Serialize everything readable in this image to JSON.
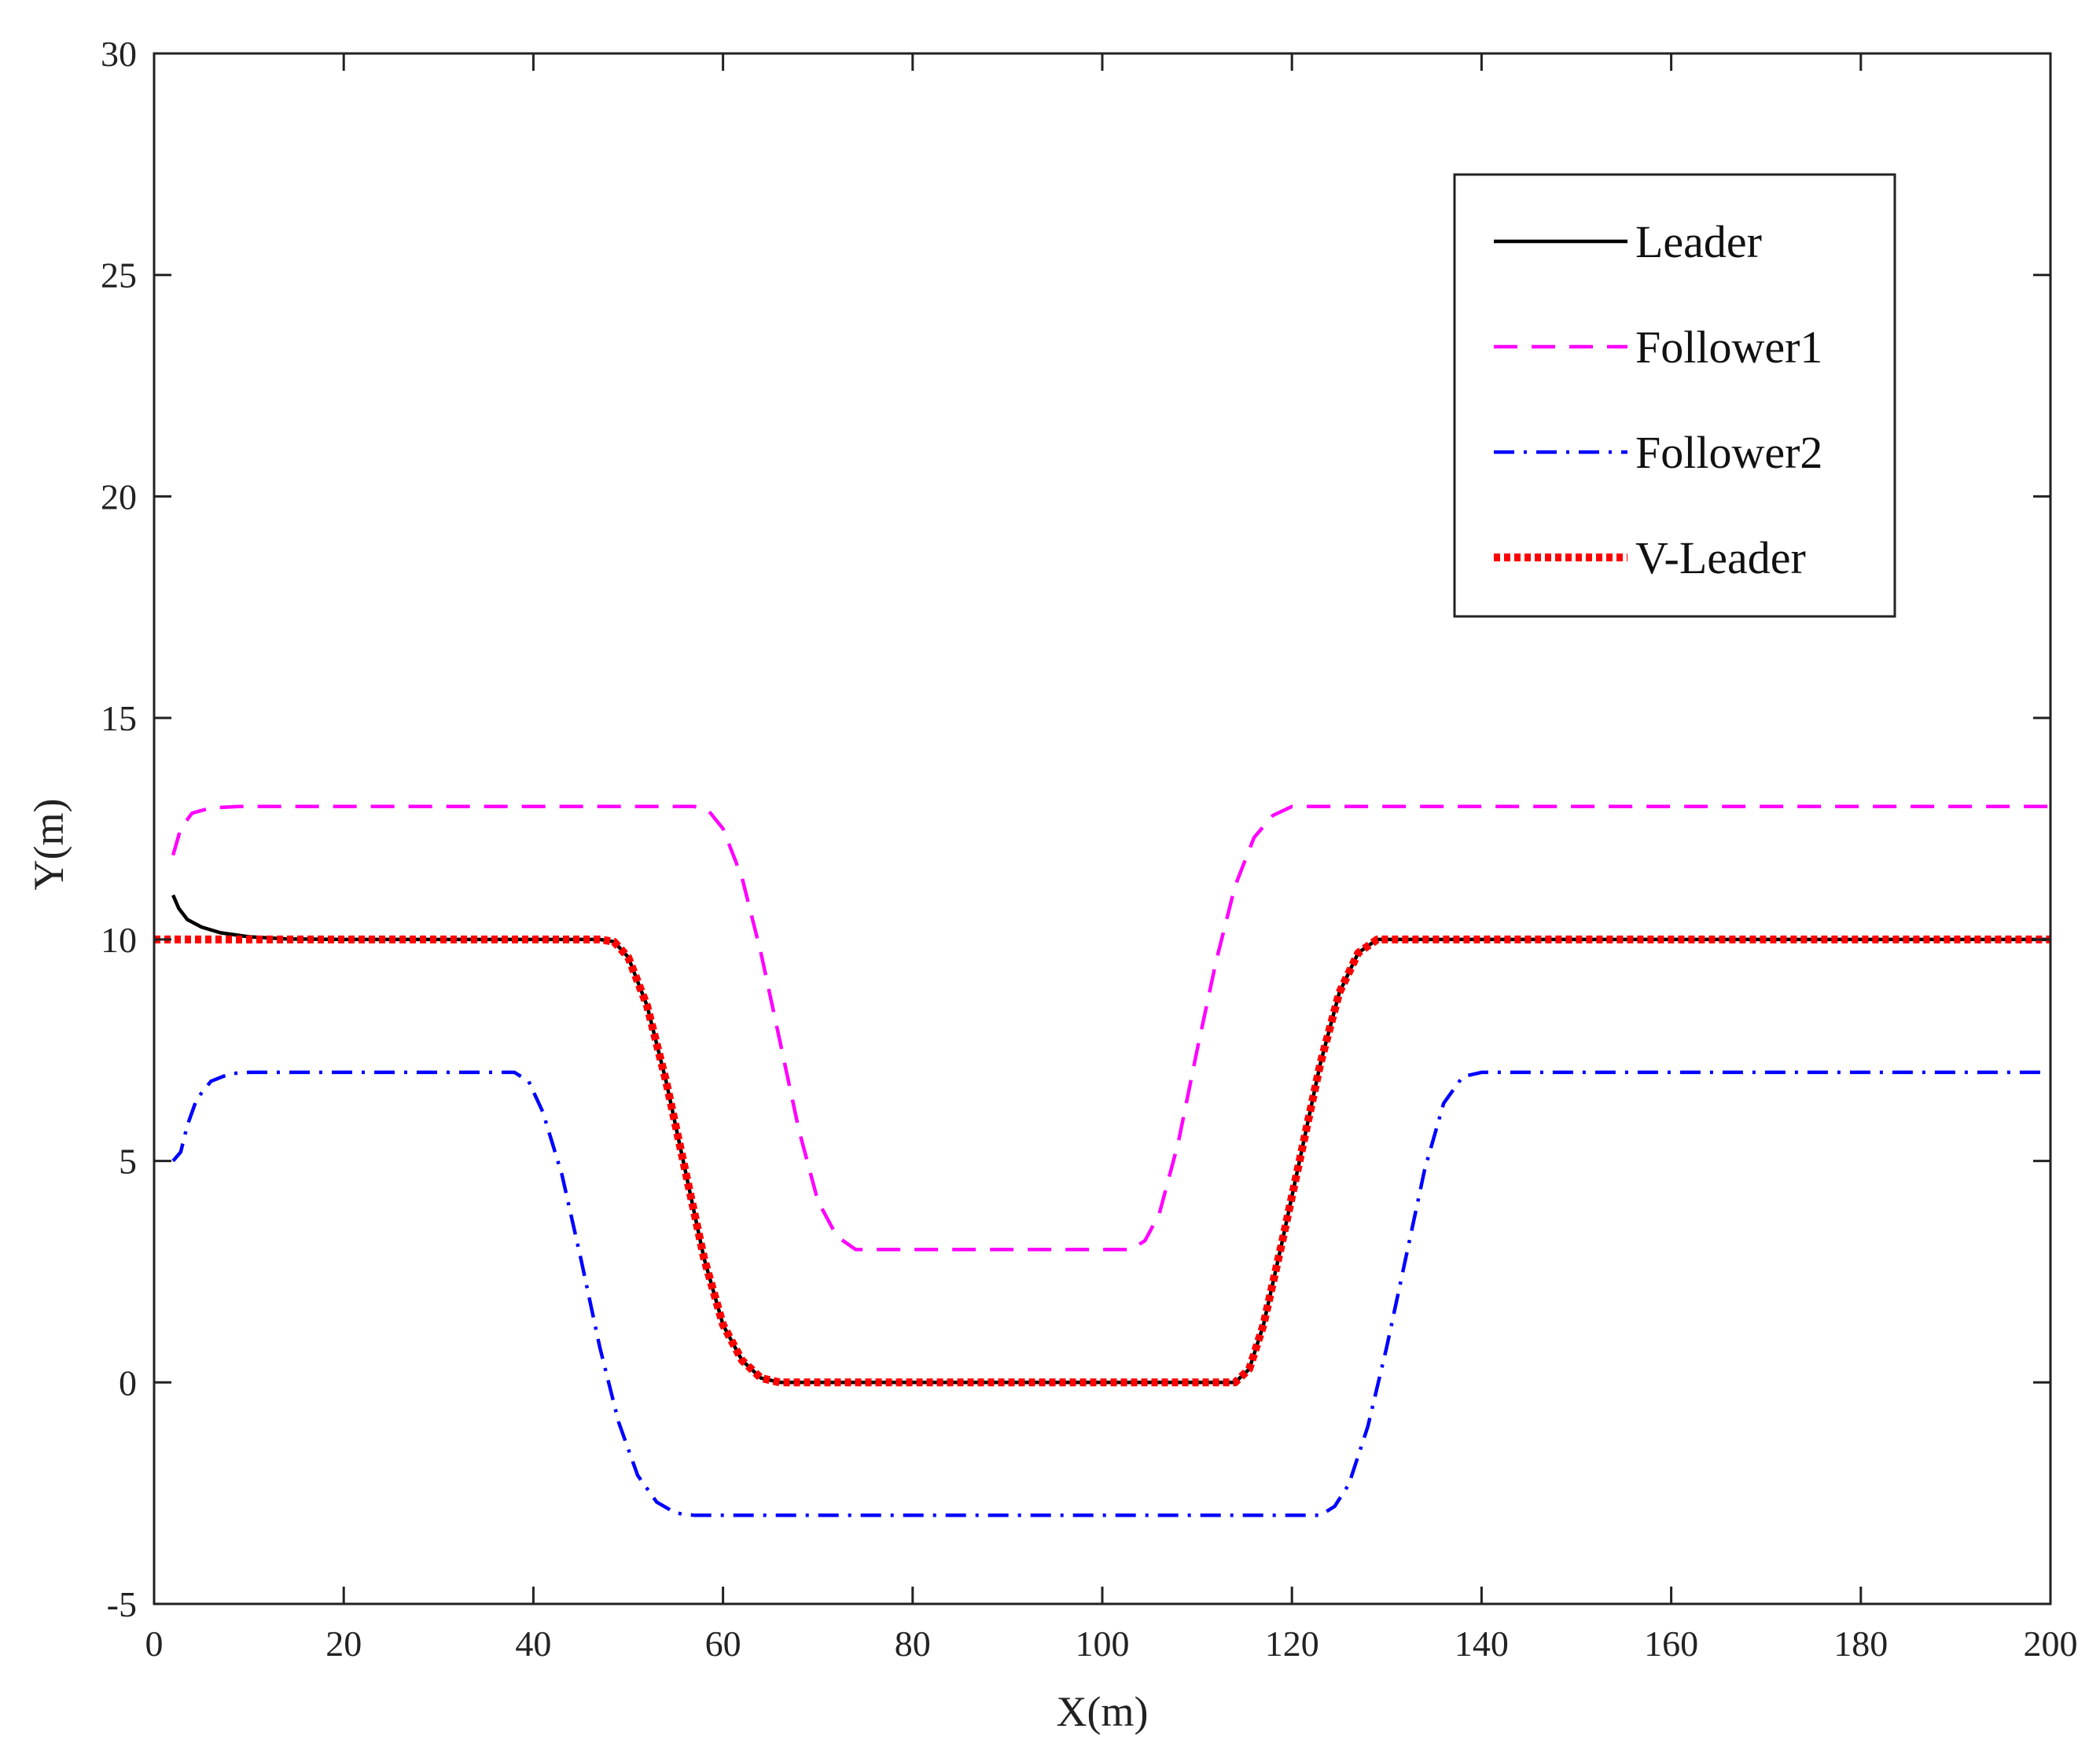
{
  "chart_data": {
    "type": "line",
    "xlabel": "X(m)",
    "ylabel": "Y(m)",
    "xlim": [
      0,
      200
    ],
    "ylim": [
      -5,
      30
    ],
    "xticks": [
      "0",
      "20",
      "40",
      "60",
      "80",
      "100",
      "120",
      "140",
      "160",
      "180",
      "200"
    ],
    "yticks": [
      "-5",
      "0",
      "5",
      "10",
      "15",
      "20",
      "25",
      "30"
    ],
    "grid": false,
    "legend_position": "top-right",
    "series": [
      {
        "name": "Leader",
        "color": "#000000",
        "style": "solid",
        "points": [
          [
            2,
            11
          ],
          [
            2.6,
            10.7
          ],
          [
            3.5,
            10.45
          ],
          [
            5,
            10.28
          ],
          [
            7,
            10.15
          ],
          [
            10,
            10.06
          ],
          [
            14,
            10.01
          ],
          [
            20,
            10
          ],
          [
            47,
            10
          ],
          [
            48.5,
            9.95
          ],
          [
            50,
            9.6
          ],
          [
            52,
            8.5
          ],
          [
            54,
            6.8
          ],
          [
            56,
            4.8
          ],
          [
            58,
            2.8
          ],
          [
            60,
            1.3
          ],
          [
            62,
            0.5
          ],
          [
            64,
            0.1
          ],
          [
            66,
            0
          ],
          [
            114,
            0
          ],
          [
            115.5,
            0.3
          ],
          [
            117,
            1.3
          ],
          [
            119,
            3.2
          ],
          [
            121,
            5.2
          ],
          [
            123,
            7.2
          ],
          [
            125,
            8.8
          ],
          [
            127,
            9.7
          ],
          [
            129,
            10
          ],
          [
            200,
            10
          ]
        ]
      },
      {
        "name": "Follower1",
        "color": "#ff00ff",
        "style": "dashed",
        "points": [
          [
            2,
            11.9
          ],
          [
            2.8,
            12.5
          ],
          [
            4,
            12.85
          ],
          [
            6,
            12.97
          ],
          [
            9,
            13
          ],
          [
            57,
            13
          ],
          [
            58.5,
            12.9
          ],
          [
            60,
            12.5
          ],
          [
            62,
            11.4
          ],
          [
            64,
            9.7
          ],
          [
            66,
            7.7
          ],
          [
            68,
            5.7
          ],
          [
            70,
            4.1
          ],
          [
            72,
            3.3
          ],
          [
            74,
            3
          ],
          [
            77,
            3
          ],
          [
            103,
            3
          ],
          [
            104.5,
            3.2
          ],
          [
            106,
            3.8
          ],
          [
            108,
            5.4
          ],
          [
            110,
            7.5
          ],
          [
            112,
            9.5
          ],
          [
            114,
            11.2
          ],
          [
            116,
            12.3
          ],
          [
            118,
            12.8
          ],
          [
            120,
            13
          ],
          [
            200,
            13
          ]
        ]
      },
      {
        "name": "Follower2",
        "color": "#0000ff",
        "style": "dashdot",
        "points": [
          [
            2,
            5
          ],
          [
            2.8,
            5.2
          ],
          [
            3.5,
            5.8
          ],
          [
            4.5,
            6.4
          ],
          [
            6,
            6.8
          ],
          [
            8,
            6.97
          ],
          [
            10,
            7
          ],
          [
            38,
            7
          ],
          [
            39.5,
            6.8
          ],
          [
            41,
            6.1
          ],
          [
            43,
            4.7
          ],
          [
            45,
            2.8
          ],
          [
            47,
            0.8
          ],
          [
            49,
            -0.9
          ],
          [
            51,
            -2.1
          ],
          [
            53,
            -2.7
          ],
          [
            55,
            -2.95
          ],
          [
            57,
            -3
          ],
          [
            123,
            -3
          ],
          [
            124.5,
            -2.8
          ],
          [
            126,
            -2.3
          ],
          [
            128,
            -1
          ],
          [
            130,
            0.8
          ],
          [
            132,
            2.8
          ],
          [
            134,
            4.8
          ],
          [
            136,
            6.3
          ],
          [
            138,
            6.9
          ],
          [
            140,
            7
          ],
          [
            200,
            7
          ]
        ]
      },
      {
        "name": "V-Leader",
        "color": "#ff0000",
        "style": "dotted",
        "points": [
          [
            0,
            10
          ],
          [
            47,
            10
          ],
          [
            48.5,
            9.95
          ],
          [
            50,
            9.6
          ],
          [
            52,
            8.5
          ],
          [
            54,
            6.8
          ],
          [
            56,
            4.8
          ],
          [
            58,
            2.8
          ],
          [
            60,
            1.3
          ],
          [
            62,
            0.5
          ],
          [
            64,
            0.1
          ],
          [
            66,
            0
          ],
          [
            114,
            0
          ],
          [
            115.5,
            0.3
          ],
          [
            117,
            1.3
          ],
          [
            119,
            3.2
          ],
          [
            121,
            5.2
          ],
          [
            123,
            7.2
          ],
          [
            125,
            8.8
          ],
          [
            127,
            9.7
          ],
          [
            129,
            10
          ],
          [
            200,
            10
          ]
        ]
      }
    ]
  }
}
